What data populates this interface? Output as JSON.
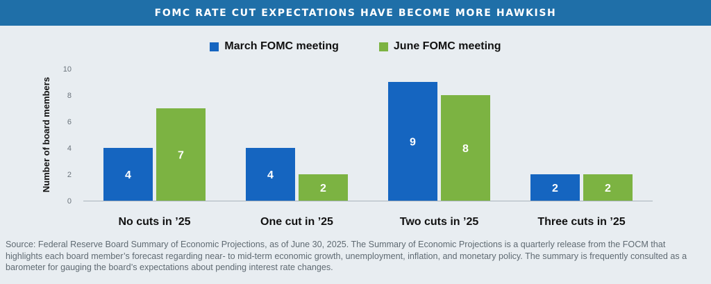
{
  "header": {
    "title": "FOMC RATE CUT EXPECTATIONS HAVE BECOME MORE HAWKISH"
  },
  "legend": [
    {
      "label": "March FOMC meeting",
      "color": "#1565c0"
    },
    {
      "label": "June FOMC meeting",
      "color": "#7cb342"
    }
  ],
  "chart_data": {
    "type": "bar",
    "categories": [
      "No cuts in ’25",
      "One cut in ’25",
      "Two cuts in ’25",
      "Three cuts in ’25"
    ],
    "series": [
      {
        "name": "March FOMC meeting",
        "values": [
          4,
          4,
          9,
          2
        ],
        "color": "#1565c0"
      },
      {
        "name": "June FOMC meeting",
        "values": [
          7,
          2,
          8,
          2
        ],
        "color": "#7cb342"
      }
    ],
    "ylabel": "Number of board members",
    "ylim": [
      0,
      10
    ],
    "yticks": [
      0,
      2,
      4,
      6,
      8,
      10
    ],
    "grid": false,
    "legend_position": "top-center",
    "data_labels": true
  },
  "source": "Source: Federal Reserve Board Summary of Economic Projections, as of June 30, 2025. The Summary of Economic Projections is a quarterly release from the FOCM that highlights each board member’s forecast regarding near- to mid-term economic growth, unemployment, inflation, and monetary policy. The summary is frequently consulted as a barometer for gauging the board’s expectations about pending interest rate changes."
}
